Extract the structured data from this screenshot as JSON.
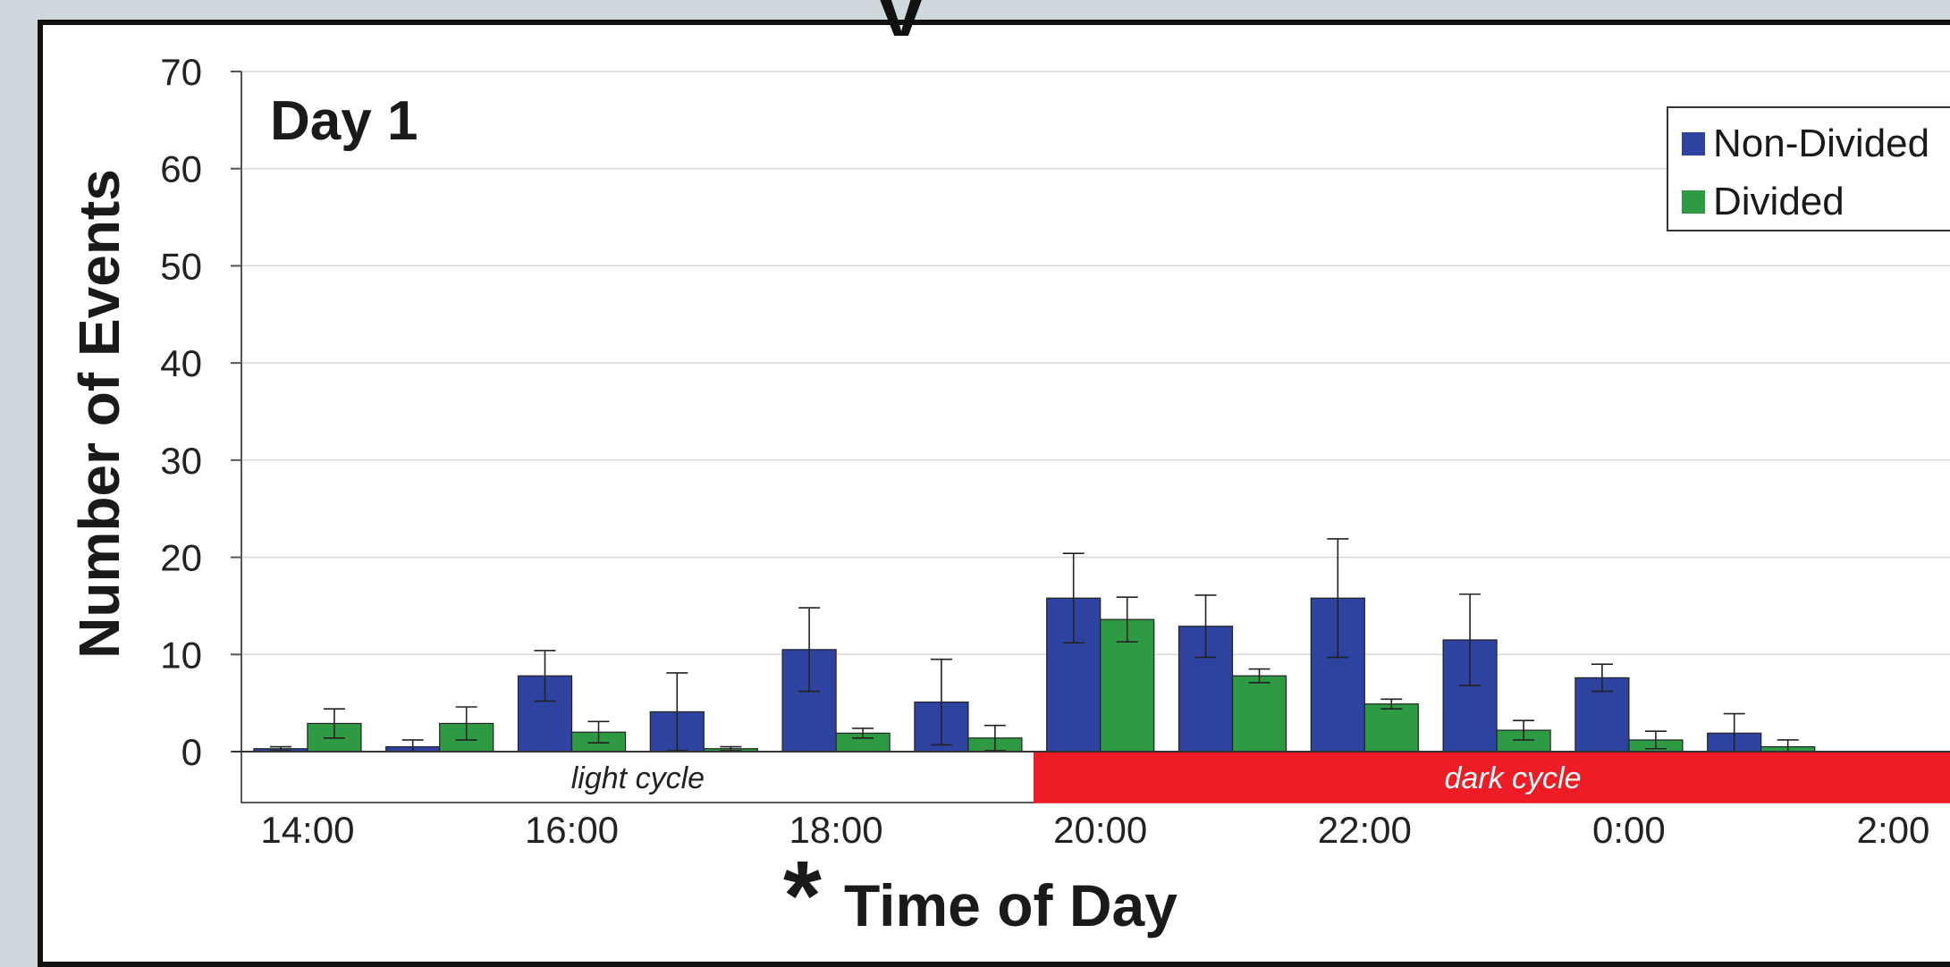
{
  "title_fragment": "y",
  "chart_data": {
    "type": "bar",
    "annotation": "Day 1",
    "xlabel": "Time of Day",
    "xlabel_marker": "*",
    "ylabel": "Number of Events",
    "ylim": [
      0,
      70
    ],
    "yticks": [
      "0",
      "10",
      "20",
      "30",
      "40",
      "50",
      "60",
      "70"
    ],
    "xticks": [
      "14:00",
      "16:00",
      "18:00",
      "20:00",
      "22:00",
      "0:00",
      "2:00"
    ],
    "grid": true,
    "legend_position": "top-right",
    "colors": {
      "Non-Divided": "#2e43a0",
      "Divided": "#2f9a44",
      "dark_cycle": "#ee1c25",
      "light_cycle": "#ffffff"
    },
    "series": [
      {
        "name": "Non-Divided",
        "values": [
          0.3,
          0.5,
          7.8,
          4.1,
          10.5,
          5.1,
          15.8,
          12.9,
          15.8,
          11.5,
          7.6,
          1.9
        ],
        "errors": [
          0.2,
          0.7,
          2.6,
          4.0,
          4.3,
          4.4,
          4.6,
          3.2,
          6.1,
          4.7,
          1.4,
          2.0
        ]
      },
      {
        "name": "Divided",
        "values": [
          2.9,
          2.9,
          2.0,
          0.3,
          1.9,
          1.4,
          13.6,
          7.8,
          4.9,
          2.2,
          1.2,
          0.5
        ],
        "errors": [
          1.5,
          1.7,
          1.1,
          0.2,
          0.5,
          1.3,
          2.3,
          0.7,
          0.5,
          1.0,
          0.9,
          0.7
        ]
      }
    ],
    "cycles": [
      {
        "label": "light cycle",
        "from_bin": 0,
        "to_bin": 6
      },
      {
        "label": "dark cycle",
        "from_bin": 6,
        "to_bin": 13
      }
    ]
  }
}
